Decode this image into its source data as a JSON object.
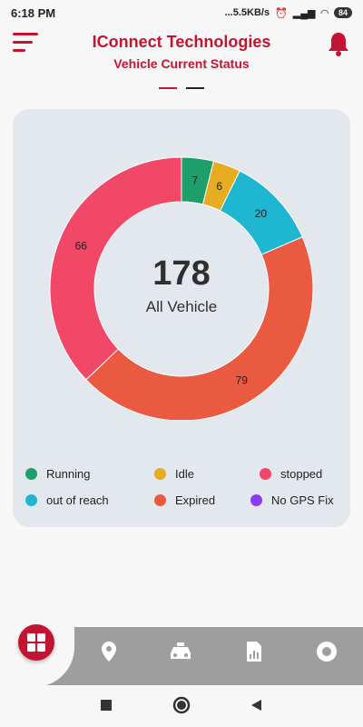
{
  "status_bar": {
    "time": "6:18 PM",
    "network": "...5.5KB/s",
    "battery": "84"
  },
  "header": {
    "title": "IConnect Technologies",
    "subtitle": "Vehicle Current Status"
  },
  "summary": {
    "total": "178",
    "label": "All Vehicle"
  },
  "colors": {
    "accent": "#c21531",
    "running": "#1e9e6a",
    "idle": "#e6ac22",
    "stopped": "#f04866",
    "out_of_reach": "#1fb6d1",
    "expired": "#ea5a40",
    "no_gps_fix": "#8a3cf0"
  },
  "chart_data": {
    "type": "pie",
    "categories": [
      "Running",
      "Idle",
      "out of reach",
      "Expired",
      "stopped",
      "No GPS Fix"
    ],
    "values": [
      7,
      6,
      20,
      79,
      66,
      0
    ],
    "colors": [
      "#1e9e6a",
      "#e6ac22",
      "#1fb6d1",
      "#ea5a40",
      "#f04866",
      "#8a3cf0"
    ]
  },
  "legend": [
    {
      "label": "Running",
      "color": "#1e9e6a"
    },
    {
      "label": "Idle",
      "color": "#e6ac22"
    },
    {
      "label": "stopped",
      "color": "#f04866"
    },
    {
      "label": "out of reach",
      "color": "#1fb6d1"
    },
    {
      "label": "Expired",
      "color": "#ea5a40"
    },
    {
      "label": "No GPS Fix",
      "color": "#8a3cf0"
    }
  ],
  "bottom_nav": {
    "items": [
      {
        "icon": "dashboard-grid-icon"
      },
      {
        "icon": "location-pin-icon"
      },
      {
        "icon": "car-icon"
      },
      {
        "icon": "report-icon"
      },
      {
        "icon": "settings-circle-icon"
      }
    ]
  }
}
